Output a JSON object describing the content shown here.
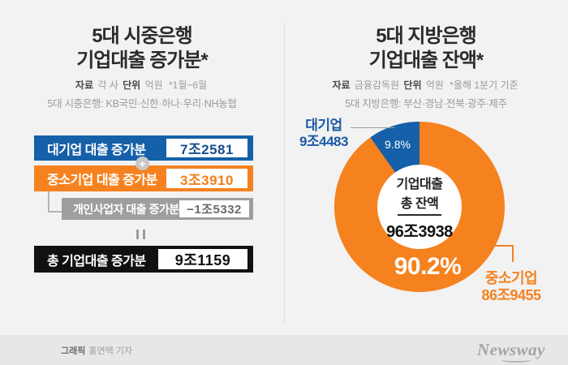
{
  "colors": {
    "blue": "#1560a8",
    "orange": "#f5821f",
    "gray": "#9d9ea0",
    "black": "#111111",
    "background": "#f2f2f3"
  },
  "left_panel": {
    "title_line1": "5대 시중은행",
    "title_line2": "기업대출 증가분*",
    "source_label": "자료",
    "source_value": "각 사",
    "unit_label": "단위",
    "unit_value": "억원",
    "footnote": "*1월~6월",
    "banks_note": "5대 시중은행: KB국민·신한·하나·우리·NH농협",
    "rows": [
      {
        "label": "대기업 대출 증가분",
        "value": "7조2581"
      },
      {
        "label": "중소기업 대출 증가분",
        "value": "3조3910"
      },
      {
        "label": "개인사업자 대출 증가분",
        "value": "−1조5332"
      }
    ],
    "plus_sign": "+",
    "total_row": {
      "label": "총 기업대출 증가분",
      "value": "9조1159"
    }
  },
  "right_panel": {
    "title_line1": "5대 지방은행",
    "title_line2": "기업대출 잔액*",
    "source_label": "자료",
    "source_value": "금융감독원",
    "unit_label": "단위",
    "unit_value": "억원",
    "footnote": "*올해 1분기 기준",
    "banks_note": "5대 지방은행: 부산·경남·전북·광주·제주",
    "donut": {
      "center_line1": "기업대출",
      "center_line2": "총 잔액",
      "center_value": "96조3938",
      "blue_pct_label": "9.8%",
      "orange_pct_label": "90.2%",
      "blue_callout_label": "대기업",
      "blue_callout_value": "9조4483",
      "orange_callout_label": "중소기업",
      "orange_callout_value": "86조9455"
    }
  },
  "footer": {
    "credit_label": "그래픽",
    "credit_value": "홍연택 기자",
    "logo": "Newsway"
  },
  "chart_data": [
    {
      "type": "table",
      "title": "5대 시중은행 기업대출 증가분",
      "unit": "억원",
      "period": "1월~6월",
      "rows": [
        [
          "대기업 대출 증가분",
          "7조2581"
        ],
        [
          "중소기업 대출 증가분",
          "3조3910"
        ],
        [
          "개인사업자 대출 증가분",
          "−1조5332"
        ],
        [
          "총 기업대출 증가분",
          "9조1159"
        ]
      ]
    },
    {
      "type": "pie",
      "donut": true,
      "title": "5대 지방은행 기업대출 잔액",
      "unit": "억원",
      "period": "올해 1분기 기준",
      "labels": [
        "중소기업",
        "대기업"
      ],
      "value_labels": [
        "86조9455",
        "9조4483"
      ],
      "percentages": [
        90.2,
        9.8
      ],
      "colors": [
        "#f5821f",
        "#1560a8"
      ],
      "center_label": "기업대출 총 잔액",
      "center_value": "96조3938"
    }
  ]
}
